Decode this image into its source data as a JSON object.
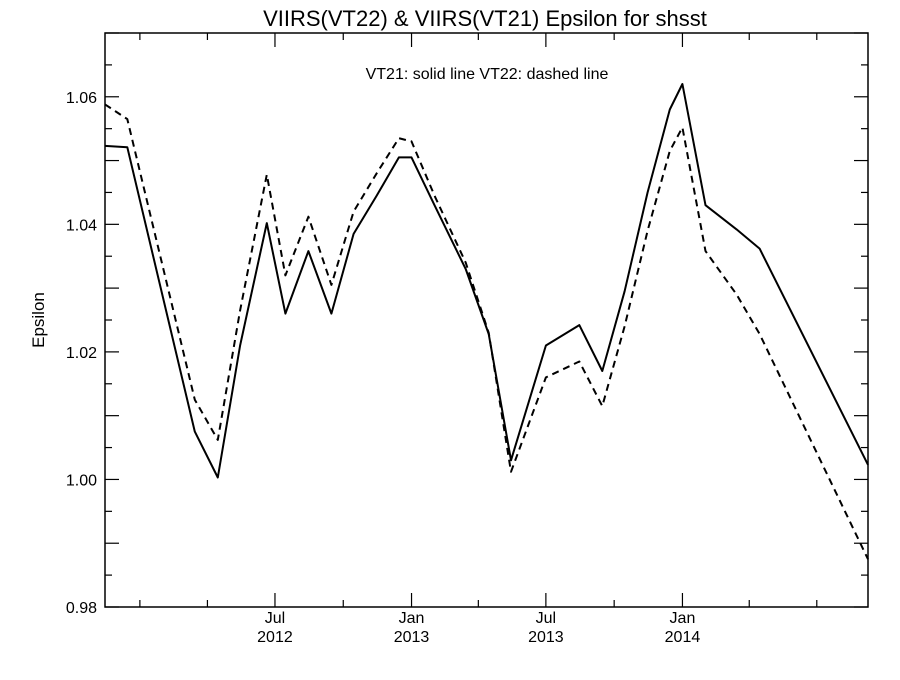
{
  "chart_data": {
    "type": "line",
    "title": "VIIRS(VT22) & VIIRS(VT21)  Epsilon for shsst",
    "xlabel": "",
    "ylabel": "Epsilon",
    "annotation": "VT21: solid line   VT22: dashed line",
    "ylim": [
      0.98,
      1.07
    ],
    "xlim": [
      "2011-11-15",
      "2014-09-08"
    ],
    "y_ticks": [
      "0.98",
      "1.00",
      "1.02",
      "1.04",
      "1.06"
    ],
    "x_ticks": [
      {
        "date": "2012-07-01",
        "line1": "Jul",
        "line2": "2012"
      },
      {
        "date": "2013-01-01",
        "line1": "Jan",
        "line2": "2013"
      },
      {
        "date": "2013-07-01",
        "line1": "Jul",
        "line2": "2013"
      },
      {
        "date": "2014-01-01",
        "line1": "Jan",
        "line2": "2014"
      }
    ],
    "x": [
      "2011-11-15",
      "2011-12-15",
      "2012-03-15",
      "2012-04-15",
      "2012-05-15",
      "2012-06-20",
      "2012-07-15",
      "2012-08-15",
      "2012-09-15",
      "2012-10-15",
      "2012-11-15",
      "2012-12-15",
      "2013-01-01",
      "2013-02-01",
      "2013-03-15",
      "2013-04-15",
      "2013-05-15",
      "2013-07-01",
      "2013-08-15",
      "2013-09-15",
      "2013-10-15",
      "2013-11-15",
      "2013-12-15",
      "2014-01-01",
      "2014-02-01",
      "2014-03-15",
      "2014-04-15",
      "2014-09-08"
    ],
    "series": [
      {
        "name": "VT21",
        "style": "solid",
        "values": [
          1.0523,
          1.0521,
          1.0075,
          1.0003,
          1.021,
          1.0402,
          1.026,
          1.0358,
          1.026,
          1.0385,
          1.0445,
          1.0505,
          1.0505,
          1.043,
          1.033,
          1.0228,
          1.003,
          1.021,
          1.0242,
          1.017,
          1.0295,
          1.045,
          1.058,
          1.062,
          1.043,
          1.0392,
          1.0362,
          1.0023
        ]
      },
      {
        "name": "VT22",
        "style": "dashed",
        "values": [
          1.0588,
          1.0565,
          1.0125,
          1.0062,
          1.0265,
          1.0478,
          1.032,
          1.0412,
          1.0305,
          1.042,
          1.048,
          1.0535,
          1.053,
          1.0445,
          1.034,
          1.023,
          1.0012,
          1.016,
          1.0185,
          1.0115,
          1.024,
          1.039,
          1.0515,
          1.0552,
          1.0358,
          1.029,
          1.0228,
          0.9875
        ]
      }
    ]
  }
}
